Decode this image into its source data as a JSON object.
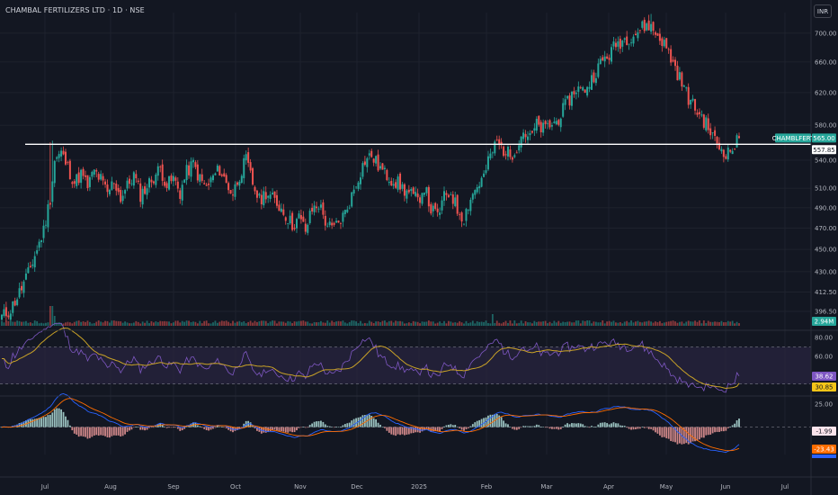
{
  "header": {
    "title": "CHAMBAL FERTILIZERS LTD · 1D · NSE",
    "currency": "INR"
  },
  "colors": {
    "background": "#131722",
    "up": "#26a69a",
    "down": "#ef5350",
    "grid": "#1e222d",
    "rsi_line": "#7e57c2",
    "rsi_ma": "#c9a227",
    "rsi_band": "#2a2540",
    "macd_line": "#2962ff",
    "signal_line": "#ff6d00",
    "hist_pos": "#b2dfdb",
    "hist_neg": "#ef9a9a"
  },
  "chart_data": {
    "type": "candlestick",
    "symbol": "CHAMBLFERT",
    "price_axis": {
      "ticks": [
        "700.00",
        "660.00",
        "620.00",
        "580.00",
        "540.00",
        "510.00",
        "490.00",
        "470.00",
        "450.00",
        "430.00",
        "412.50",
        "396.50"
      ],
      "ylim": [
        385,
        730
      ],
      "scale": "log"
    },
    "time_axis": {
      "labels": [
        "Jul",
        "Aug",
        "Sep",
        "Oct",
        "Nov",
        "Dec",
        "2025",
        "Feb",
        "Mar",
        "Apr",
        "May",
        "Jun",
        "Jul"
      ]
    },
    "horizontal_line": {
      "value": 557.85,
      "label": "557.85"
    },
    "last_price": {
      "value": 565.0,
      "label": "565.00",
      "symbol_label": "CHAMBLFERT"
    },
    "volume": {
      "last_label": "2.94M"
    },
    "rsi": {
      "ticks": [
        "80.00",
        "60.00"
      ],
      "bands": [
        70,
        30
      ],
      "last_rsi": {
        "value": 38.62,
        "label": "38.62"
      },
      "last_ma": {
        "value": 30.85,
        "label": "30.85"
      }
    },
    "macd": {
      "ticks": [
        "25.00"
      ],
      "last_hist": {
        "value": -1.99,
        "label": "-1.99"
      },
      "last_signal": {
        "value": -23.43,
        "label": "-23.43"
      }
    }
  }
}
